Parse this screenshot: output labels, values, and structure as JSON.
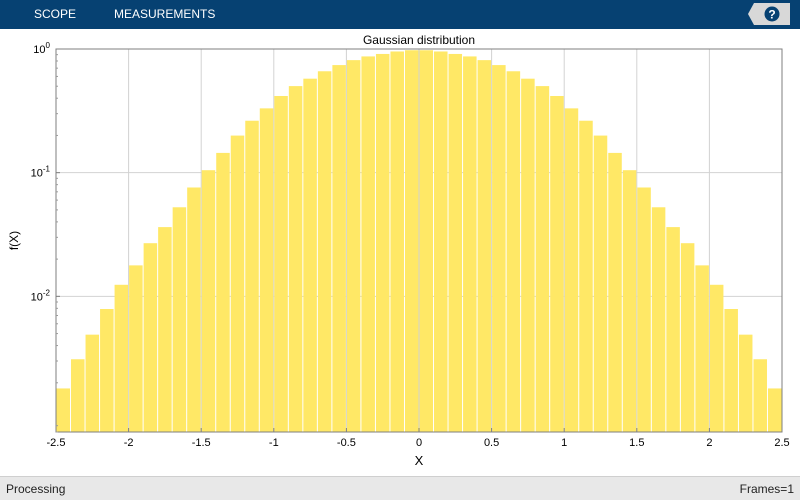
{
  "toolbar": {
    "tabs": [
      "SCOPE",
      "MEASUREMENTS"
    ],
    "help_label": "?",
    "background": "#064172"
  },
  "status": {
    "left": "Processing",
    "right": "Frames=1"
  },
  "chart_data": {
    "type": "bar",
    "title": "Gaussian distribution",
    "xlabel": "X",
    "ylabel": "f(X)",
    "xlim": [
      -2.5,
      2.5
    ],
    "ylim": [
      0.0008,
      1
    ],
    "yscale": "log",
    "grid": true,
    "bar_color": "#ffe866",
    "x_ticks": [
      "-2.5",
      "-2",
      "-1.5",
      "-1",
      "-0.5",
      "0",
      "0.5",
      "1",
      "1.5",
      "2",
      "2.5"
    ],
    "y_ticks": [
      {
        "base": "10",
        "exp": "0"
      },
      {
        "base": "10",
        "exp": "-1"
      },
      {
        "base": "10",
        "exp": "-2"
      }
    ],
    "bin_width": 0.1,
    "x": [
      -2.45,
      -2.35,
      -2.25,
      -2.15,
      -2.05,
      -1.95,
      -1.85,
      -1.75,
      -1.65,
      -1.55,
      -1.45,
      -1.35,
      -1.25,
      -1.15,
      -1.05,
      -0.95,
      -0.85,
      -0.75,
      -0.65,
      -0.55,
      -0.45,
      -0.35,
      -0.25,
      -0.15,
      -0.05,
      0.05,
      0.15,
      0.25,
      0.35,
      0.45,
      0.55,
      0.65,
      0.75,
      0.85,
      0.95,
      1.05,
      1.15,
      1.25,
      1.35,
      1.45,
      1.55,
      1.65,
      1.75,
      1.85,
      1.95,
      2.05,
      2.15,
      2.25,
      2.35,
      2.45
    ],
    "values": [
      0.0018,
      0.0031,
      0.0049,
      0.0079,
      0.0124,
      0.0178,
      0.0269,
      0.0363,
      0.0525,
      0.0759,
      0.1047,
      0.1445,
      0.1995,
      0.263,
      0.3311,
      0.4169,
      0.5012,
      0.5754,
      0.6607,
      0.7413,
      0.8128,
      0.871,
      0.912,
      0.955,
      0.9772,
      0.9772,
      0.955,
      0.912,
      0.871,
      0.8128,
      0.7413,
      0.6607,
      0.5754,
      0.5012,
      0.4169,
      0.3311,
      0.263,
      0.1995,
      0.1445,
      0.1047,
      0.0759,
      0.0525,
      0.0363,
      0.0269,
      0.0178,
      0.0124,
      0.0079,
      0.0049,
      0.0031,
      0.0018
    ]
  }
}
